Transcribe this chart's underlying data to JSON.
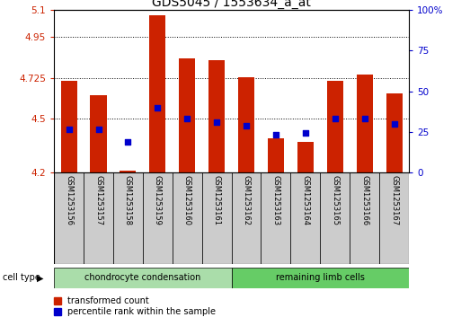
{
  "title": "GDS5045 / 1553634_a_at",
  "samples": [
    "GSM1253156",
    "GSM1253157",
    "GSM1253158",
    "GSM1253159",
    "GSM1253160",
    "GSM1253161",
    "GSM1253162",
    "GSM1253163",
    "GSM1253164",
    "GSM1253165",
    "GSM1253166",
    "GSM1253167"
  ],
  "bar_tops": [
    4.71,
    4.63,
    4.21,
    5.07,
    4.83,
    4.82,
    4.73,
    4.39,
    4.37,
    4.71,
    4.74,
    4.64
  ],
  "bar_bottom": 4.2,
  "blue_dots": [
    4.44,
    4.44,
    4.37,
    4.56,
    4.5,
    4.48,
    4.46,
    4.41,
    4.42,
    4.5,
    4.5,
    4.47
  ],
  "ylim_left": [
    4.2,
    5.1
  ],
  "ylim_right": [
    0,
    100
  ],
  "yticks_left": [
    4.2,
    4.5,
    4.725,
    4.95,
    5.1
  ],
  "yticks_left_labels": [
    "4.2",
    "4.5",
    "4.725",
    "4.95",
    "5.1"
  ],
  "yticks_right": [
    0,
    25,
    50,
    75,
    100
  ],
  "yticks_right_labels": [
    "0",
    "25",
    "50",
    "75",
    "100%"
  ],
  "hlines": [
    4.95,
    4.725,
    4.5
  ],
  "bar_color": "#cc2200",
  "dot_color": "#0000cc",
  "background_color": "#ffffff",
  "cell_type_label": "cell type",
  "group1_label": "chondrocyte condensation",
  "group2_label": "remaining limb cells",
  "group1_color": "#aaddaa",
  "group2_color": "#66cc66",
  "sample_box_color": "#cccccc",
  "legend_items": [
    {
      "label": "transformed count",
      "color": "#cc2200"
    },
    {
      "label": "percentile rank within the sample",
      "color": "#0000cc"
    }
  ],
  "bar_width": 0.55,
  "tick_color_left": "#cc2200",
  "tick_color_right": "#0000cc",
  "title_fontsize": 10,
  "axis_fontsize": 8
}
